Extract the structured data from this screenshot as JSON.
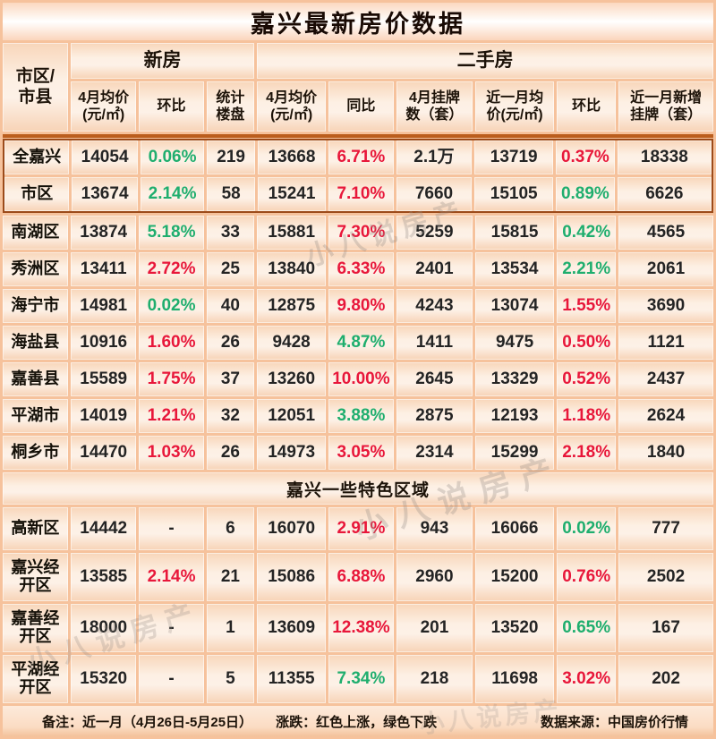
{
  "title": "嘉兴最新房价数据",
  "colors": {
    "k": "#242424",
    "r": "#e8173a",
    "g": "#1fae6e",
    "grid": "#f6c29c",
    "divider": "#bb5e1e",
    "highlight_border": "#9c4b1a"
  },
  "header": {
    "corner": "市区/\n市县",
    "group_new": "新房",
    "group_used": "二手房",
    "columns": [
      "4月均价\n(元/㎡)",
      "环比",
      "统计\n楼盘",
      "4月均价\n(元/㎡)",
      "同比",
      "4月挂牌\n数（套）",
      "近一月均\n价(元/㎡)",
      "环比",
      "近一月新增\n挂牌（套）"
    ]
  },
  "main_rows": [
    {
      "name": "全嘉兴",
      "highlight": true,
      "cells": [
        [
          "14054",
          "k"
        ],
        [
          "0.06%",
          "g"
        ],
        [
          "219",
          "k"
        ],
        [
          "13668",
          "k"
        ],
        [
          "6.71%",
          "r"
        ],
        [
          "2.1万",
          "k"
        ],
        [
          "13719",
          "k"
        ],
        [
          "0.37%",
          "r"
        ],
        [
          "18338",
          "k"
        ]
      ]
    },
    {
      "name": "市区",
      "highlight": true,
      "cells": [
        [
          "13674",
          "k"
        ],
        [
          "2.14%",
          "g"
        ],
        [
          "58",
          "k"
        ],
        [
          "15241",
          "k"
        ],
        [
          "7.10%",
          "r"
        ],
        [
          "7660",
          "k"
        ],
        [
          "15105",
          "k"
        ],
        [
          "0.89%",
          "g"
        ],
        [
          "6626",
          "k"
        ]
      ]
    },
    {
      "name": "南湖区",
      "highlight": false,
      "cells": [
        [
          "13874",
          "k"
        ],
        [
          "5.18%",
          "g"
        ],
        [
          "33",
          "k"
        ],
        [
          "15881",
          "k"
        ],
        [
          "7.30%",
          "r"
        ],
        [
          "5259",
          "k"
        ],
        [
          "15815",
          "k"
        ],
        [
          "0.42%",
          "g"
        ],
        [
          "4565",
          "k"
        ]
      ]
    },
    {
      "name": "秀洲区",
      "highlight": false,
      "cells": [
        [
          "13411",
          "k"
        ],
        [
          "2.72%",
          "r"
        ],
        [
          "25",
          "k"
        ],
        [
          "13840",
          "k"
        ],
        [
          "6.33%",
          "r"
        ],
        [
          "2401",
          "k"
        ],
        [
          "13534",
          "k"
        ],
        [
          "2.21%",
          "g"
        ],
        [
          "2061",
          "k"
        ]
      ]
    },
    {
      "name": "海宁市",
      "highlight": false,
      "cells": [
        [
          "14981",
          "k"
        ],
        [
          "0.02%",
          "g"
        ],
        [
          "40",
          "k"
        ],
        [
          "12875",
          "k"
        ],
        [
          "9.80%",
          "r"
        ],
        [
          "4243",
          "k"
        ],
        [
          "13074",
          "k"
        ],
        [
          "1.55%",
          "r"
        ],
        [
          "3690",
          "k"
        ]
      ]
    },
    {
      "name": "海盐县",
      "highlight": false,
      "cells": [
        [
          "10916",
          "k"
        ],
        [
          "1.60%",
          "r"
        ],
        [
          "26",
          "k"
        ],
        [
          "9428",
          "k"
        ],
        [
          "4.87%",
          "g"
        ],
        [
          "1411",
          "k"
        ],
        [
          "9475",
          "k"
        ],
        [
          "0.50%",
          "r"
        ],
        [
          "1121",
          "k"
        ]
      ]
    },
    {
      "name": "嘉善县",
      "highlight": false,
      "cells": [
        [
          "15589",
          "k"
        ],
        [
          "1.75%",
          "r"
        ],
        [
          "37",
          "k"
        ],
        [
          "13260",
          "k"
        ],
        [
          "10.00%",
          "r"
        ],
        [
          "2645",
          "k"
        ],
        [
          "13329",
          "k"
        ],
        [
          "0.52%",
          "r"
        ],
        [
          "2437",
          "k"
        ]
      ]
    },
    {
      "name": "平湖市",
      "highlight": false,
      "cells": [
        [
          "14019",
          "k"
        ],
        [
          "1.21%",
          "r"
        ],
        [
          "32",
          "k"
        ],
        [
          "12051",
          "k"
        ],
        [
          "3.88%",
          "g"
        ],
        [
          "2875",
          "k"
        ],
        [
          "12193",
          "k"
        ],
        [
          "1.18%",
          "r"
        ],
        [
          "2624",
          "k"
        ]
      ]
    },
    {
      "name": "桐乡市",
      "highlight": false,
      "cells": [
        [
          "14470",
          "k"
        ],
        [
          "1.03%",
          "r"
        ],
        [
          "26",
          "k"
        ],
        [
          "14973",
          "k"
        ],
        [
          "3.05%",
          "r"
        ],
        [
          "2314",
          "k"
        ],
        [
          "15299",
          "k"
        ],
        [
          "2.18%",
          "r"
        ],
        [
          "1840",
          "k"
        ]
      ]
    }
  ],
  "section_header": "嘉兴一些特色区域",
  "section_rows": [
    {
      "name": "高新区",
      "cells": [
        [
          "14442",
          "k"
        ],
        [
          "-",
          "k"
        ],
        [
          "6",
          "k"
        ],
        [
          "16070",
          "k"
        ],
        [
          "2.91%",
          "r"
        ],
        [
          "943",
          "k"
        ],
        [
          "16066",
          "k"
        ],
        [
          "0.02%",
          "g"
        ],
        [
          "777",
          "k"
        ]
      ]
    },
    {
      "name": "嘉兴经\n开区",
      "cells": [
        [
          "13585",
          "k"
        ],
        [
          "2.14%",
          "r"
        ],
        [
          "21",
          "k"
        ],
        [
          "15086",
          "k"
        ],
        [
          "6.88%",
          "r"
        ],
        [
          "2960",
          "k"
        ],
        [
          "15200",
          "k"
        ],
        [
          "0.76%",
          "r"
        ],
        [
          "2502",
          "k"
        ]
      ]
    },
    {
      "name": "嘉善经\n开区",
      "cells": [
        [
          "18000",
          "k"
        ],
        [
          "-",
          "k"
        ],
        [
          "1",
          "k"
        ],
        [
          "13609",
          "k"
        ],
        [
          "12.38%",
          "r"
        ],
        [
          "201",
          "k"
        ],
        [
          "13520",
          "k"
        ],
        [
          "0.65%",
          "g"
        ],
        [
          "167",
          "k"
        ]
      ]
    },
    {
      "name": "平湖经\n开区",
      "cells": [
        [
          "15320",
          "k"
        ],
        [
          "-",
          "k"
        ],
        [
          "5",
          "k"
        ],
        [
          "11355",
          "k"
        ],
        [
          "7.34%",
          "g"
        ],
        [
          "218",
          "k"
        ],
        [
          "11698",
          "k"
        ],
        [
          "3.02%",
          "r"
        ],
        [
          "202",
          "k"
        ]
      ]
    }
  ],
  "footer": {
    "note": "备注：近一月（4月26日-5月25日）",
    "legend": "涨跌：红色上涨，绿色下跌",
    "source": "数据来源：中国房价行情"
  },
  "watermark": {
    "text": "小八说房产"
  },
  "chart_data": {
    "type": "table",
    "title": "嘉兴最新房价数据",
    "column_groups": [
      "新房",
      "二手房"
    ],
    "columns": [
      "市区/市县",
      "新房4月均价(元/㎡)",
      "新房环比",
      "统计楼盘",
      "二手房4月均价(元/㎡)",
      "同比",
      "4月挂牌数（套）",
      "近一月均价(元/㎡)",
      "近一月环比",
      "近一月新增挂牌（套）"
    ],
    "rows": [
      [
        "全嘉兴",
        "14054",
        "0.06%",
        "219",
        "13668",
        "6.71%",
        "2.1万",
        "13719",
        "0.37%",
        "18338"
      ],
      [
        "市区",
        "13674",
        "2.14%",
        "58",
        "15241",
        "7.10%",
        "7660",
        "15105",
        "0.89%",
        "6626"
      ],
      [
        "南湖区",
        "13874",
        "5.18%",
        "33",
        "15881",
        "7.30%",
        "5259",
        "15815",
        "0.42%",
        "4565"
      ],
      [
        "秀洲区",
        "13411",
        "2.72%",
        "25",
        "13840",
        "6.33%",
        "2401",
        "13534",
        "2.21%",
        "2061"
      ],
      [
        "海宁市",
        "14981",
        "0.02%",
        "40",
        "12875",
        "9.80%",
        "4243",
        "13074",
        "1.55%",
        "3690"
      ],
      [
        "海盐县",
        "10916",
        "1.60%",
        "26",
        "9428",
        "4.87%",
        "1411",
        "9475",
        "0.50%",
        "1121"
      ],
      [
        "嘉善县",
        "15589",
        "1.75%",
        "37",
        "13260",
        "10.00%",
        "2645",
        "13329",
        "0.52%",
        "2437"
      ],
      [
        "平湖市",
        "14019",
        "1.21%",
        "32",
        "12051",
        "3.88%",
        "2875",
        "12193",
        "1.18%",
        "2624"
      ],
      [
        "桐乡市",
        "14470",
        "1.03%",
        "26",
        "14973",
        "3.05%",
        "2314",
        "15299",
        "2.18%",
        "1840"
      ],
      [
        "高新区",
        "14442",
        "-",
        "6",
        "16070",
        "2.91%",
        "943",
        "16066",
        "0.02%",
        "777"
      ],
      [
        "嘉兴经开区",
        "13585",
        "2.14%",
        "21",
        "15086",
        "6.88%",
        "2960",
        "15200",
        "0.76%",
        "2502"
      ],
      [
        "嘉善经开区",
        "18000",
        "-",
        "1",
        "13609",
        "12.38%",
        "201",
        "13520",
        "0.65%",
        "167"
      ],
      [
        "平湖经开区",
        "15320",
        "-",
        "5",
        "11355",
        "7.34%",
        "218",
        "11698",
        "3.02%",
        "202"
      ]
    ],
    "section_label": "嘉兴一些特色区域",
    "section_rows_start": 9,
    "legend_note": "红色上涨，绿色下跌"
  }
}
